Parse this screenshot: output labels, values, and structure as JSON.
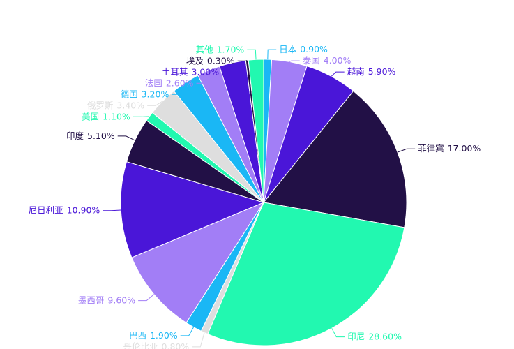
{
  "chart_data": {
    "type": "pie",
    "categories": [
      "日本",
      "泰国",
      "越南",
      "菲律宾",
      "印尼",
      "哥伦比亚",
      "巴西",
      "墨西哥",
      "尼日利亚",
      "印度",
      "美国",
      "俄罗斯",
      "德国",
      "法国",
      "土耳其",
      "埃及",
      "其他"
    ],
    "values": [
      0.9,
      4.0,
      5.9,
      17.0,
      28.6,
      0.8,
      1.9,
      9.6,
      10.9,
      5.1,
      1.1,
      3.4,
      3.2,
      2.6,
      3.0,
      0.3,
      1.7
    ],
    "value_labels": [
      "0.90%",
      "4.00%",
      "5.90%",
      "17.00%",
      "28.60%",
      "0.80%",
      "1.90%",
      "9.60%",
      "10.90%",
      "5.10%",
      "1.10%",
      "3.40%",
      "3.20%",
      "2.60%",
      "3.00%",
      "0.30%",
      "1.70%"
    ],
    "colors": [
      "#1ab7f5",
      "#a27ef6",
      "#4a16d8",
      "#221046",
      "#22f8b0",
      "#dedede",
      "#1ab7f5",
      "#a27ef6",
      "#4a16d8",
      "#221046",
      "#22f8b0",
      "#dedede",
      "#1ab7f5",
      "#a27ef6",
      "#4a16d8",
      "#221046",
      "#22f8b0"
    ]
  }
}
